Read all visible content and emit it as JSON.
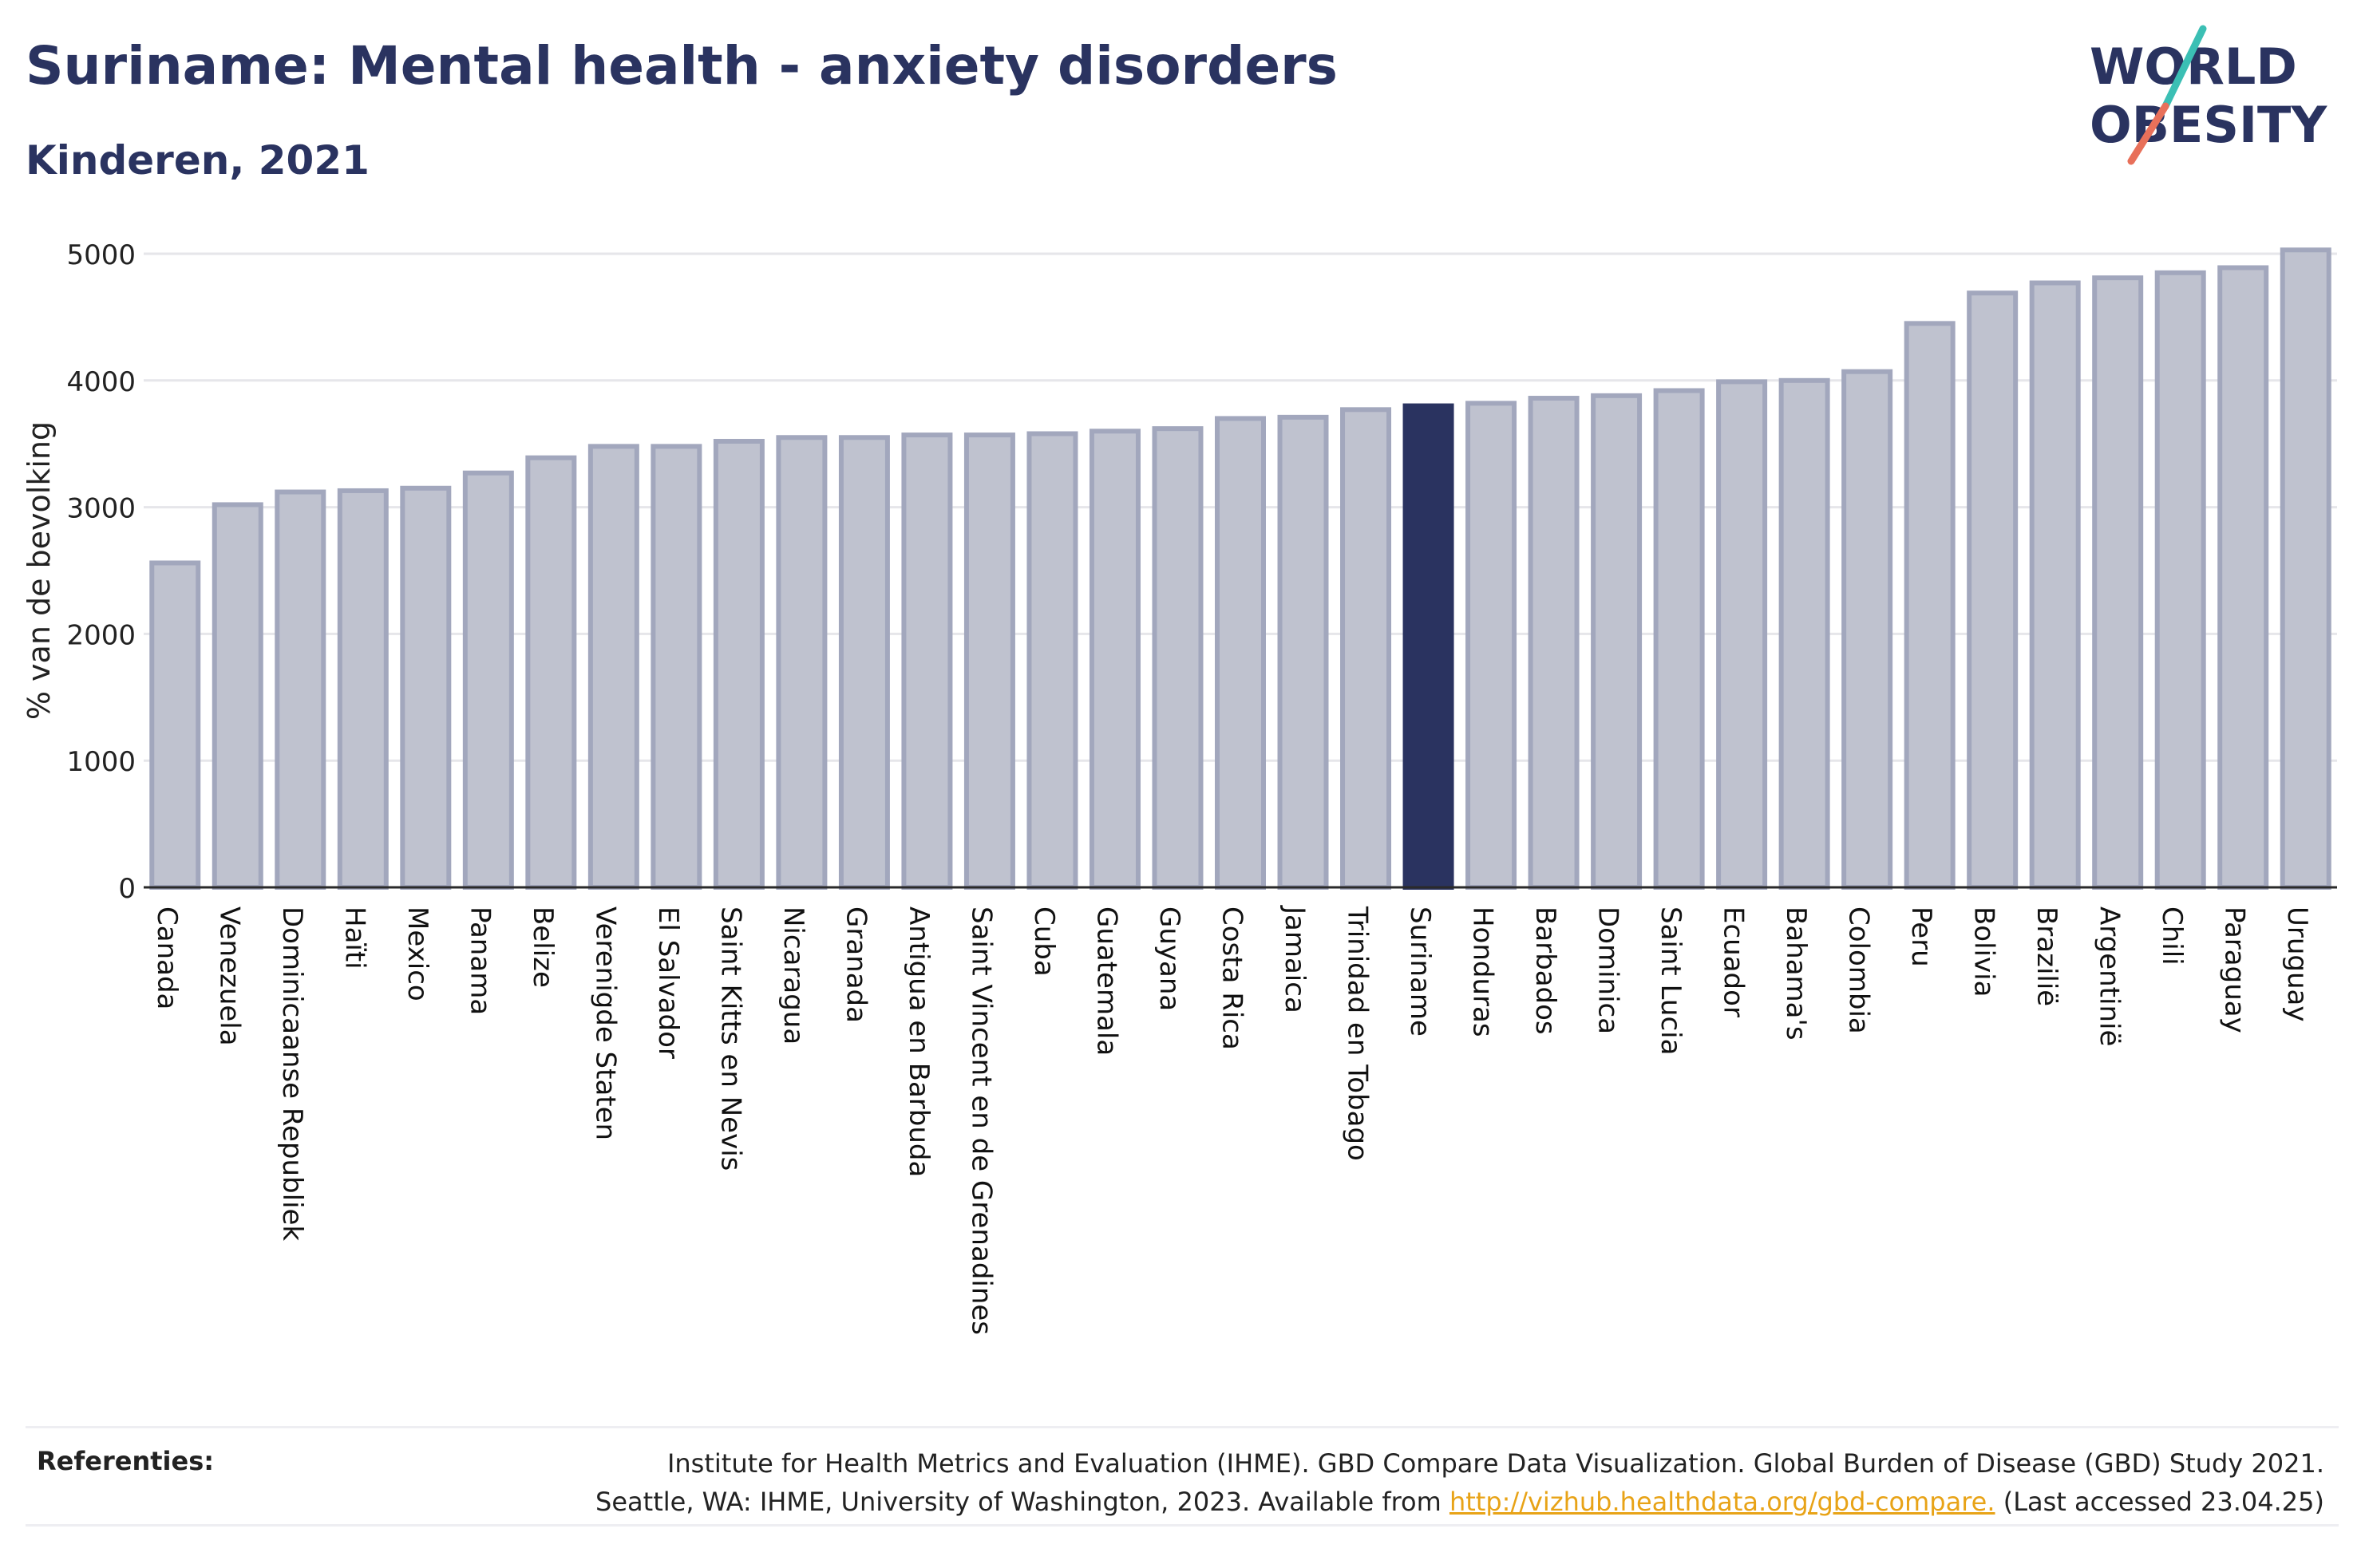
{
  "header": {
    "title": "Suriname: Mental health - anxiety disorders",
    "subtitle": "Kinderen, 2021"
  },
  "logo": {
    "line1": "WORLD",
    "line2": "OBESITY",
    "colors": {
      "text": "#2a3360",
      "slash_top": "#3bbfb4",
      "slash_bottom": "#e8705a"
    }
  },
  "chart_data": {
    "type": "bar",
    "title": "Suriname: Mental health - anxiety disorders",
    "subtitle": "Kinderen, 2021",
    "ylabel": "% van de bevolking",
    "xlabel": "",
    "ylim": [
      0,
      5200
    ],
    "yticks": [
      0,
      1000,
      2000,
      3000,
      4000,
      5000
    ],
    "grid": true,
    "highlight": "Suriname",
    "colors": {
      "bar": "#bfc2cf",
      "bar_border": "#a2a7bd",
      "highlight": "#2a3360",
      "grid": "#e6e6ea",
      "axis": "#2a2a2a"
    },
    "categories": [
      "Canada",
      "Venezuela",
      "Dominicaanse Republiek",
      "Haïti",
      "Mexico",
      "Panama",
      "Belize",
      "Verenigde Staten",
      "El Salvador",
      "Saint Kitts en Nevis",
      "Nicaragua",
      "Granada",
      "Antigua en Barbuda",
      "Saint Vincent en de Grenadines",
      "Cuba",
      "Guatemala",
      "Guyana",
      "Costa Rica",
      "Jamaica",
      "Trinidad en Tobago",
      "Suriname",
      "Honduras",
      "Barbados",
      "Dominica",
      "Saint Lucia",
      "Ecuador",
      "Bahama's",
      "Colombia",
      "Peru",
      "Bolivia",
      "Brazilië",
      "Argentinië",
      "Chili",
      "Paraguay",
      "Uruguay"
    ],
    "values": [
      2560,
      3020,
      3120,
      3130,
      3150,
      3270,
      3390,
      3480,
      3480,
      3520,
      3550,
      3550,
      3570,
      3570,
      3580,
      3600,
      3620,
      3700,
      3710,
      3770,
      3800,
      3820,
      3860,
      3880,
      3920,
      3990,
      4000,
      4070,
      4450,
      4690,
      4770,
      4810,
      4850,
      4890,
      5030
    ]
  },
  "references": {
    "label": "Referenties:",
    "line1": "Institute for Health Metrics and Evaluation (IHME). GBD Compare Data Visualization. Global Burden of Disease (GBD) Study 2021.",
    "line2_prefix": "Seattle, WA: IHME, University of Washington, 2023. Available from ",
    "link_text": "http://vizhub.healthdata.org/gbd-compare.",
    "line2_suffix": " (Last accessed 23.04.25)"
  }
}
